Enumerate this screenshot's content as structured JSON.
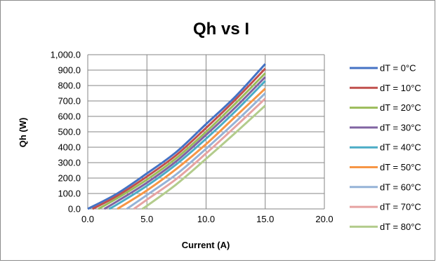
{
  "chart_data": {
    "type": "line",
    "title": "Qh vs I",
    "xlabel": "Current (A)",
    "ylabel": "Qh (W)",
    "xlim": [
      0,
      20
    ],
    "ylim": [
      0,
      1000
    ],
    "x_ticks": [
      "0.0",
      "5.0",
      "10.0",
      "15.0",
      "20.0"
    ],
    "y_ticks": [
      "0.0",
      "100.0",
      "200.0",
      "300.0",
      "400.0",
      "500.0",
      "600.0",
      "700.0",
      "800.0",
      "900.0",
      "1,000.0"
    ],
    "grid": true,
    "legend_position": "right",
    "series": [
      {
        "name": "dT = 0°C",
        "color": "#4472c4",
        "points": [
          [
            0.0,
            0
          ],
          [
            2.5,
            100
          ],
          [
            5.0,
            230
          ],
          [
            7.5,
            370
          ],
          [
            10.0,
            550
          ],
          [
            12.5,
            730
          ],
          [
            15.0,
            940
          ]
        ]
      },
      {
        "name": "dT = 10°C",
        "color": "#c0504d",
        "points": [
          [
            0.4,
            0
          ],
          [
            2.5,
            85
          ],
          [
            5.0,
            210
          ],
          [
            7.5,
            350
          ],
          [
            10.0,
            525
          ],
          [
            12.5,
            710
          ],
          [
            15.0,
            910
          ]
        ]
      },
      {
        "name": "dT = 20°C",
        "color": "#9bbb59",
        "points": [
          [
            0.9,
            0
          ],
          [
            2.5,
            70
          ],
          [
            5.0,
            190
          ],
          [
            7.5,
            330
          ],
          [
            10.0,
            500
          ],
          [
            12.5,
            685
          ],
          [
            15.0,
            880
          ]
        ]
      },
      {
        "name": "dT = 30°C",
        "color": "#8064a2",
        "points": [
          [
            1.4,
            0
          ],
          [
            2.5,
            50
          ],
          [
            5.0,
            170
          ],
          [
            7.5,
            310
          ],
          [
            10.0,
            480
          ],
          [
            12.5,
            660
          ],
          [
            15.0,
            855
          ]
        ]
      },
      {
        "name": "dT = 40°C",
        "color": "#4bacc6",
        "points": [
          [
            1.8,
            0
          ],
          [
            2.5,
            30
          ],
          [
            5.0,
            150
          ],
          [
            7.5,
            290
          ],
          [
            10.0,
            455
          ],
          [
            12.5,
            635
          ],
          [
            15.0,
            830
          ]
        ]
      },
      {
        "name": "dT = 50°C",
        "color": "#f79646",
        "points": [
          [
            2.5,
            0
          ],
          [
            5.0,
            120
          ],
          [
            7.5,
            260
          ],
          [
            10.0,
            420
          ],
          [
            12.5,
            600
          ],
          [
            15.0,
            780
          ]
        ]
      },
      {
        "name": "dT = 60°C",
        "color": "#95b3d7",
        "points": [
          [
            3.3,
            0
          ],
          [
            5.0,
            90
          ],
          [
            7.5,
            225
          ],
          [
            10.0,
            390
          ],
          [
            12.5,
            565
          ],
          [
            15.0,
            750
          ]
        ]
      },
      {
        "name": "dT = 70°C",
        "color": "#e6a3a2",
        "points": [
          [
            3.9,
            0
          ],
          [
            5.0,
            60
          ],
          [
            7.5,
            195
          ],
          [
            10.0,
            360
          ],
          [
            12.5,
            535
          ],
          [
            15.0,
            715
          ]
        ]
      },
      {
        "name": "dT = 80°C",
        "color": "#b3cc8c",
        "points": [
          [
            4.6,
            0
          ],
          [
            5.0,
            20
          ],
          [
            7.5,
            160
          ],
          [
            10.0,
            325
          ],
          [
            12.5,
            495
          ],
          [
            15.0,
            670
          ]
        ]
      }
    ]
  }
}
